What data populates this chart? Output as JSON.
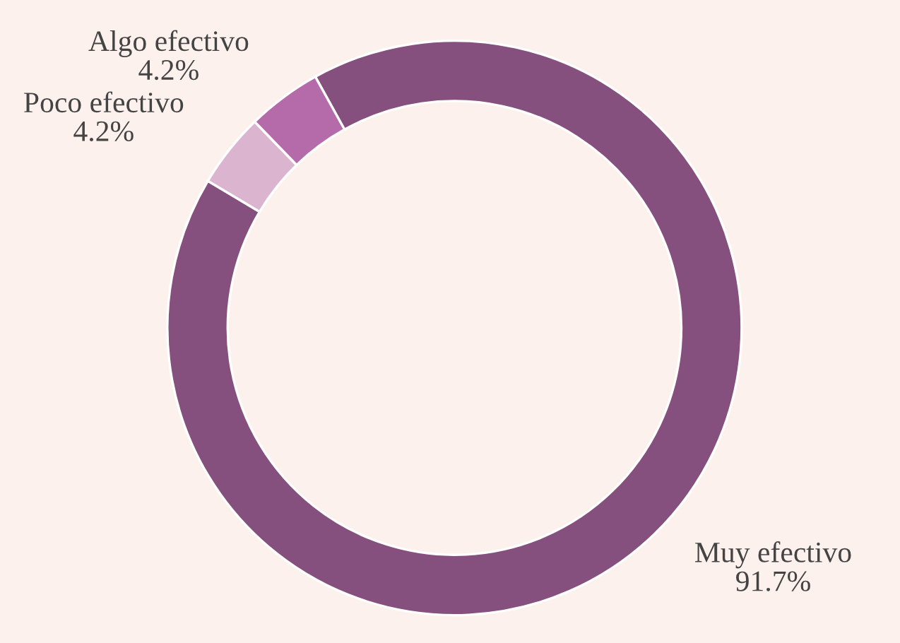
{
  "chart_data": {
    "type": "donut",
    "categories": [
      "Muy efectivo",
      "Poco efectivo",
      "Algo efectivo"
    ],
    "values": [
      91.7,
      4.2,
      4.2
    ],
    "colors": [
      "#86507e",
      "#dbb4d0",
      "#b56aaa"
    ],
    "value_labels": [
      "91.7%",
      "4.2%",
      "4.2%"
    ],
    "legend": false
  }
}
